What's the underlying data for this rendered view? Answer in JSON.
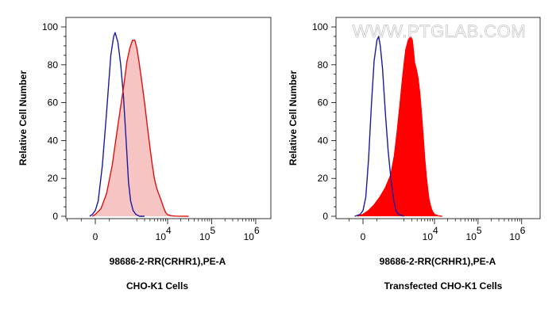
{
  "watermark": "WWW.PTGLAB.COM",
  "chart_data": [
    {
      "type": "area",
      "title": "CHO-K1 Cells",
      "xlabel": "98686-2-RR(CRHR1),PE-A",
      "ylabel": "Relative Cell Number",
      "xscale": "biexponential",
      "ylim": [
        0,
        100
      ],
      "yticks": [
        0,
        20,
        40,
        60,
        80,
        100
      ],
      "xtick_labels": [
        {
          "base": "0",
          "exp": ""
        },
        {
          "base": "10",
          "exp": "4"
        },
        {
          "base": "10",
          "exp": "5"
        },
        {
          "base": "10",
          "exp": "6"
        }
      ],
      "grid": false,
      "legend": "none",
      "series": [
        {
          "color": "#1a1aa0",
          "fill": "none",
          "points": [
            [
              -200,
              0
            ],
            [
              -100,
              1
            ],
            [
              0,
              3
            ],
            [
              100,
              8
            ],
            [
              250,
              27
            ],
            [
              400,
              55
            ],
            [
              550,
              85
            ],
            [
              650,
              95
            ],
            [
              700,
              97
            ],
            [
              800,
              92
            ],
            [
              900,
              80
            ],
            [
              1000,
              63
            ],
            [
              1100,
              47
            ],
            [
              1200,
              32
            ],
            [
              1300,
              18
            ],
            [
              1450,
              8
            ],
            [
              1650,
              3
            ],
            [
              1900,
              1
            ],
            [
              2300,
              0
            ],
            [
              3000,
              0
            ]
          ]
        },
        {
          "color": "#e01010",
          "fill": "#f7c4c4",
          "points": [
            [
              -100,
              0
            ],
            [
              0,
              1
            ],
            [
              200,
              4
            ],
            [
              400,
              12
            ],
            [
              600,
              27
            ],
            [
              800,
              48
            ],
            [
              1000,
              68
            ],
            [
              1200,
              82
            ],
            [
              1400,
              89
            ],
            [
              1600,
              93
            ],
            [
              1800,
              93
            ],
            [
              2000,
              89
            ],
            [
              2200,
              83
            ],
            [
              2500,
              74
            ],
            [
              3000,
              60
            ],
            [
              3500,
              47
            ],
            [
              4000,
              36
            ],
            [
              4500,
              27
            ],
            [
              5000,
              20
            ],
            [
              5500,
              16
            ],
            [
              6000,
              13
            ],
            [
              6500,
              11
            ],
            [
              7000,
              9
            ],
            [
              7500,
              7
            ],
            [
              8000,
              5
            ],
            [
              9000,
              2
            ],
            [
              10000,
              0.8
            ],
            [
              12000,
              0.3
            ],
            [
              15000,
              0.1
            ],
            [
              30000,
              0
            ]
          ]
        }
      ]
    },
    {
      "type": "area",
      "title": "Transfected CHO-K1 Cells",
      "xlabel": "98686-2-RR(CRHR1),PE-A",
      "ylabel": "Relative Cell Number",
      "xscale": "biexponential",
      "ylim": [
        0,
        100
      ],
      "yticks": [
        0,
        20,
        40,
        60,
        80,
        100
      ],
      "xtick_labels": [
        {
          "base": "0",
          "exp": ""
        },
        {
          "base": "10",
          "exp": "4"
        },
        {
          "base": "10",
          "exp": "5"
        },
        {
          "base": "10",
          "exp": "6"
        }
      ],
      "grid": false,
      "legend": "none",
      "series": [
        {
          "color": "#ff0000",
          "fill": "#ff0000",
          "points": [
            [
              -200,
              0
            ],
            [
              0,
              1
            ],
            [
              200,
              3
            ],
            [
              400,
              6
            ],
            [
              600,
              10
            ],
            [
              800,
              15
            ],
            [
              1000,
              22
            ],
            [
              1200,
              32
            ],
            [
              1400,
              45
            ],
            [
              1600,
              58
            ],
            [
              1800,
              70
            ],
            [
              2000,
              80
            ],
            [
              2200,
              88
            ],
            [
              2500,
              93
            ],
            [
              2800,
              95
            ],
            [
              3100,
              93
            ],
            [
              3300,
              87
            ],
            [
              3500,
              81
            ],
            [
              3800,
              78
            ],
            [
              4200,
              73
            ],
            [
              4600,
              65
            ],
            [
              5000,
              55
            ],
            [
              5500,
              42
            ],
            [
              6000,
              30
            ],
            [
              6500,
              21
            ],
            [
              7000,
              14
            ],
            [
              7500,
              9
            ],
            [
              8000,
              6
            ],
            [
              8500,
              4
            ],
            [
              9000,
              2.5
            ],
            [
              10000,
              1
            ],
            [
              12000,
              0.3
            ],
            [
              15000,
              0
            ]
          ]
        },
        {
          "color": "#1a1aa0",
          "fill": "none",
          "points": [
            [
              -300,
              0
            ],
            [
              -100,
              1
            ],
            [
              0,
              3
            ],
            [
              100,
              10
            ],
            [
              200,
              30
            ],
            [
              300,
              58
            ],
            [
              400,
              82
            ],
            [
              500,
              93
            ],
            [
              560,
              95
            ],
            [
              620,
              90
            ],
            [
              700,
              78
            ],
            [
              800,
              55
            ],
            [
              900,
              35
            ],
            [
              1000,
              20
            ],
            [
              1150,
              9
            ],
            [
              1300,
              3
            ],
            [
              1500,
              1
            ],
            [
              2000,
              0
            ]
          ]
        }
      ]
    }
  ]
}
